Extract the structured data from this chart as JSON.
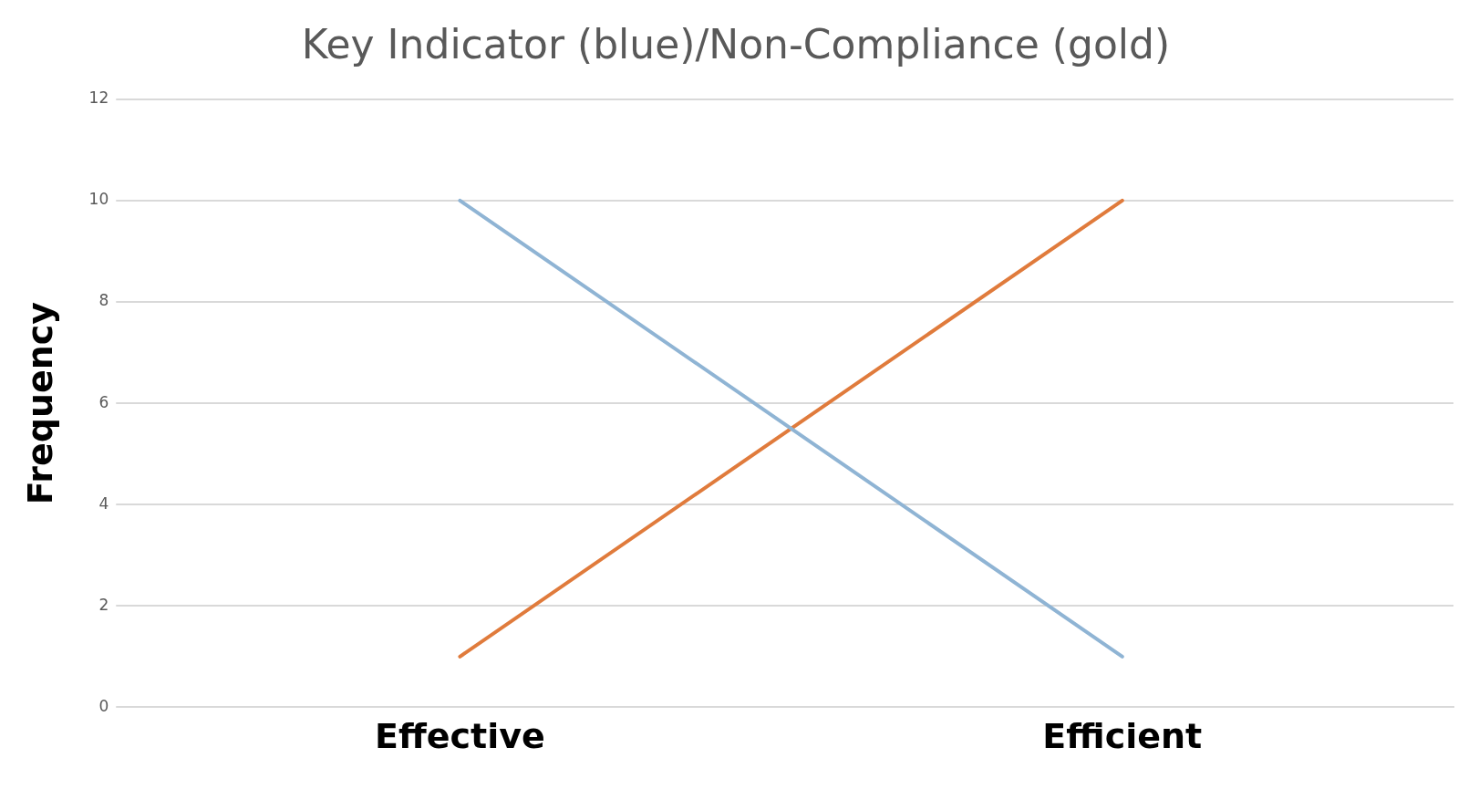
{
  "chart_data": {
    "type": "line",
    "title": "Key Indicator (blue)/Non-Compliance (gold)",
    "ylabel": "Frequency",
    "categories": [
      "Effective",
      "Efficient"
    ],
    "series": [
      {
        "color": "#8fb4d4",
        "values": [
          10,
          1
        ]
      },
      {
        "color": "#e07b3c",
        "values": [
          1,
          10
        ]
      }
    ],
    "ylim": [
      0,
      12
    ],
    "yticks": [
      0,
      2,
      4,
      6,
      8,
      10,
      12
    ],
    "grid": "y",
    "legend": false,
    "marker": "none",
    "line_style": "solid"
  }
}
